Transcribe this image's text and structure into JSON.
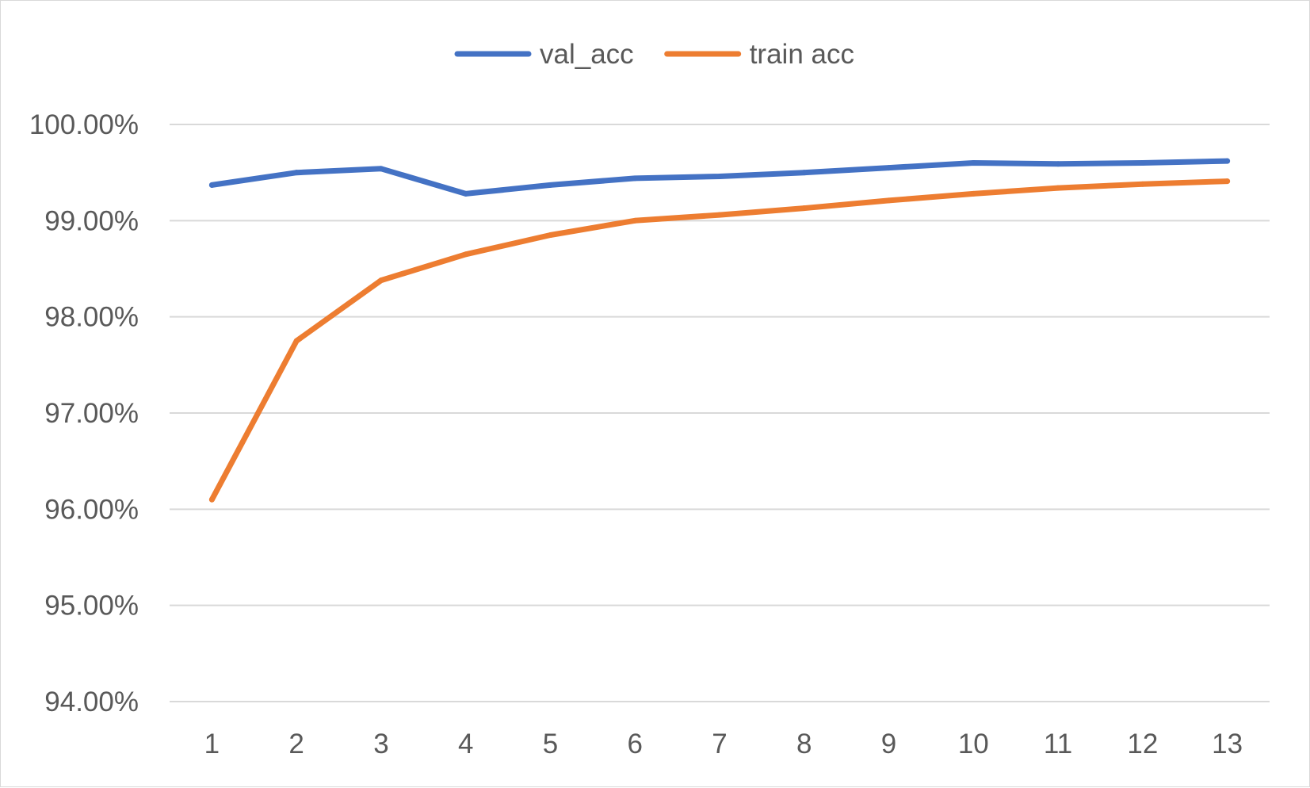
{
  "chart_data": {
    "type": "line",
    "title": "",
    "xlabel": "",
    "ylabel": "",
    "x": [
      1,
      2,
      3,
      4,
      5,
      6,
      7,
      8,
      9,
      10,
      11,
      12,
      13
    ],
    "x_tick_labels": [
      "1",
      "2",
      "3",
      "4",
      "5",
      "6",
      "7",
      "8",
      "9",
      "10",
      "11",
      "12",
      "13"
    ],
    "ylim": [
      0.94,
      1.0
    ],
    "y_ticks": [
      0.94,
      0.95,
      0.96,
      0.97,
      0.98,
      0.99,
      1.0
    ],
    "y_tick_labels": [
      "94.00%",
      "95.00%",
      "96.00%",
      "97.00%",
      "98.00%",
      "99.00%",
      "100.00%"
    ],
    "grid": "horizontal",
    "legend_position": "top",
    "series": [
      {
        "name": "val_acc",
        "color": "#4472c4",
        "values": [
          0.9937,
          0.995,
          0.9954,
          0.9928,
          0.9937,
          0.9944,
          0.9946,
          0.995,
          0.9955,
          0.996,
          0.9959,
          0.996,
          0.9962
        ]
      },
      {
        "name": "train acc",
        "color": "#ed7d31",
        "values": [
          0.961,
          0.9775,
          0.9838,
          0.9865,
          0.9885,
          0.99,
          0.9906,
          0.9913,
          0.9921,
          0.9928,
          0.9934,
          0.9938,
          0.9941
        ]
      }
    ]
  }
}
